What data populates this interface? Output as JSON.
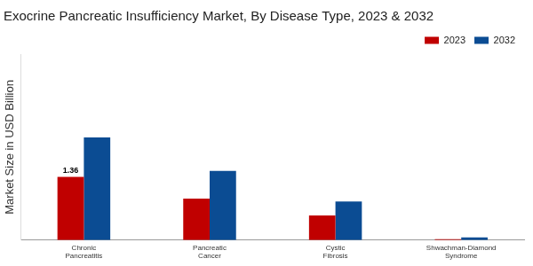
{
  "chart_data": {
    "type": "bar",
    "title": "Exocrine Pancreatic Insufficiency Market, By Disease Type, 2023 & 2032",
    "y_label": "Market Size in USD Billion",
    "categories": [
      "Chronic Pancreatitis",
      "Pancreatic Cancer",
      "Cystic Fibrosis",
      "Shwachman-Diamond Syndrome"
    ],
    "series": [
      {
        "name": "2023",
        "color": "#c00000",
        "values": [
          1.36,
          0.89,
          0.53,
          0.02
        ],
        "value_labels": [
          "1.36",
          null,
          null,
          null
        ]
      },
      {
        "name": "2032",
        "color": "#0b4c93",
        "values": [
          2.21,
          1.49,
          0.83,
          0.06
        ]
      }
    ],
    "ylim": [
      0,
      4
    ],
    "grid": false,
    "legend": "top-right",
    "tick_labels": "x"
  }
}
